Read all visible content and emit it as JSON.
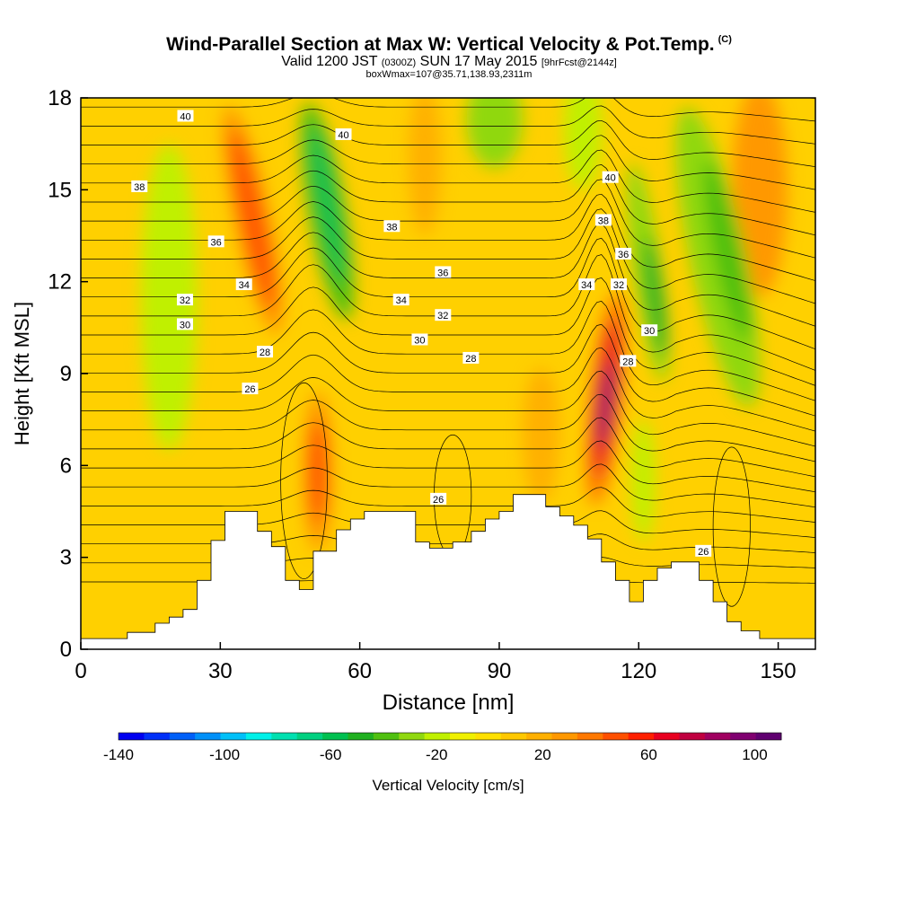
{
  "title": {
    "main": "Wind-Parallel Section at Max W: Vertical Velocity & Pot.Temp.",
    "copyright": "(C)",
    "valid_prefix": "Valid 1200 JST",
    "valid_utc": "(0300Z)",
    "valid_date": "SUN 17 May 2015",
    "forecast": "[9hrFcst@2144z]",
    "boxwmax": "boxWmax=107@35.71,138.93,2311m"
  },
  "chart_data": {
    "type": "contour-section",
    "xlabel": "Distance [nm]",
    "ylabel": "Height [Kft MSL]",
    "xlim": [
      0,
      158
    ],
    "ylim": [
      0,
      18
    ],
    "xticks": [
      0,
      30,
      60,
      90,
      120,
      150
    ],
    "yticks": [
      0,
      3,
      6,
      9,
      12,
      15,
      18
    ],
    "colorbar": {
      "label": "Vertical Velocity [cm/s]",
      "tick_labels": [
        "-140",
        "-100",
        "-60",
        "-20",
        "20",
        "60",
        "100"
      ],
      "tick_values": [
        -140,
        -100,
        -60,
        -20,
        20,
        60,
        100
      ],
      "range": [
        -140,
        110
      ],
      "colors": [
        "#0000f0",
        "#0030f8",
        "#0060f8",
        "#0090f8",
        "#00c0f8",
        "#00f0e8",
        "#00e0b0",
        "#00d080",
        "#00c050",
        "#20b020",
        "#50c010",
        "#90d810",
        "#c0f000",
        "#f0f000",
        "#ffe000",
        "#ffc800",
        "#ffb000",
        "#ff9800",
        "#ff7800",
        "#ff5000",
        "#ff2000",
        "#e80020",
        "#c00040",
        "#a00060",
        "#800070",
        "#600070"
      ]
    },
    "terrain": [
      [
        0,
        0.35
      ],
      [
        10,
        0.35
      ],
      [
        10,
        0.55
      ],
      [
        16,
        0.55
      ],
      [
        16,
        0.85
      ],
      [
        19,
        0.85
      ],
      [
        19,
        1.05
      ],
      [
        22,
        1.05
      ],
      [
        22,
        1.3
      ],
      [
        25,
        1.3
      ],
      [
        25,
        2.25
      ],
      [
        28,
        2.25
      ],
      [
        28,
        3.55
      ],
      [
        31,
        3.55
      ],
      [
        31,
        4.5
      ],
      [
        38,
        4.5
      ],
      [
        38,
        3.85
      ],
      [
        41,
        3.85
      ],
      [
        41,
        3.35
      ],
      [
        44,
        3.35
      ],
      [
        44,
        2.25
      ],
      [
        47,
        2.25
      ],
      [
        47,
        1.95
      ],
      [
        50,
        1.95
      ],
      [
        50,
        3.2
      ],
      [
        55,
        3.2
      ],
      [
        55,
        3.9
      ],
      [
        58,
        3.9
      ],
      [
        58,
        4.25
      ],
      [
        61,
        4.25
      ],
      [
        61,
        4.5
      ],
      [
        72,
        4.5
      ],
      [
        72,
        3.5
      ],
      [
        75,
        3.5
      ],
      [
        75,
        3.3
      ],
      [
        80,
        3.3
      ],
      [
        80,
        3.5
      ],
      [
        84,
        3.5
      ],
      [
        84,
        3.85
      ],
      [
        87,
        3.85
      ],
      [
        87,
        4.25
      ],
      [
        90,
        4.25
      ],
      [
        90,
        4.5
      ],
      [
        93,
        4.5
      ],
      [
        93,
        5.05
      ],
      [
        100,
        5.05
      ],
      [
        100,
        4.65
      ],
      [
        103,
        4.65
      ],
      [
        103,
        4.35
      ],
      [
        106,
        4.35
      ],
      [
        106,
        4.05
      ],
      [
        109,
        4.05
      ],
      [
        109,
        3.6
      ],
      [
        112,
        3.6
      ],
      [
        112,
        2.85
      ],
      [
        115,
        2.85
      ],
      [
        115,
        2.25
      ],
      [
        118,
        2.25
      ],
      [
        118,
        1.55
      ],
      [
        121,
        1.55
      ],
      [
        121,
        2.25
      ],
      [
        124,
        2.25
      ],
      [
        124,
        2.65
      ],
      [
        127,
        2.65
      ],
      [
        127,
        2.85
      ],
      [
        133,
        2.85
      ],
      [
        133,
        2.25
      ],
      [
        136,
        2.25
      ],
      [
        136,
        1.55
      ],
      [
        139,
        1.55
      ],
      [
        139,
        0.9
      ],
      [
        142,
        0.9
      ],
      [
        142,
        0.6
      ],
      [
        146,
        0.6
      ],
      [
        146,
        0.35
      ],
      [
        158,
        0.35
      ]
    ],
    "wfield_peaks": [
      {
        "x": 37,
        "y": 14.0,
        "value": 60
      },
      {
        "x": 51,
        "y": 5.8,
        "value": 50
      },
      {
        "x": 113,
        "y": 8.2,
        "value": 107
      },
      {
        "x": 52,
        "y": 15.0,
        "value": -55
      },
      {
        "x": 55,
        "y": 12.0,
        "value": -45
      },
      {
        "x": 88,
        "y": 17.5,
        "value": -30
      },
      {
        "x": 123,
        "y": 12.0,
        "value": -40
      },
      {
        "x": 138,
        "y": 12.5,
        "value": -35
      }
    ],
    "isentrope_labels": [
      {
        "text": "40",
        "x": 22.5,
        "y": 17.4
      },
      {
        "text": "40",
        "x": 56.5,
        "y": 16.8
      },
      {
        "text": "38",
        "x": 12.6,
        "y": 15.1
      },
      {
        "text": "38",
        "x": 66.9,
        "y": 13.8
      },
      {
        "text": "40",
        "x": 113.9,
        "y": 15.4
      },
      {
        "text": "36",
        "x": 29.1,
        "y": 13.3
      },
      {
        "text": "38",
        "x": 112.4,
        "y": 14.0
      },
      {
        "text": "36",
        "x": 77.9,
        "y": 12.3
      },
      {
        "text": "36",
        "x": 116.7,
        "y": 12.9
      },
      {
        "text": "34",
        "x": 35.1,
        "y": 11.9
      },
      {
        "text": "34",
        "x": 108.8,
        "y": 11.9
      },
      {
        "text": "32",
        "x": 115.7,
        "y": 11.9
      },
      {
        "text": "34",
        "x": 68.9,
        "y": 11.4
      },
      {
        "text": "32",
        "x": 22.4,
        "y": 11.4
      },
      {
        "text": "32",
        "x": 77.9,
        "y": 10.9
      },
      {
        "text": "30",
        "x": 22.4,
        "y": 10.6
      },
      {
        "text": "30",
        "x": 72.9,
        "y": 10.1
      },
      {
        "text": "30",
        "x": 122.3,
        "y": 10.4
      },
      {
        "text": "28",
        "x": 39.6,
        "y": 9.7
      },
      {
        "text": "28",
        "x": 83.9,
        "y": 9.5
      },
      {
        "text": "28",
        "x": 117.7,
        "y": 9.4
      },
      {
        "text": "26",
        "x": 36.4,
        "y": 8.5
      },
      {
        "text": "26",
        "x": 76.9,
        "y": 4.9
      },
      {
        "text": "26",
        "x": 133.9,
        "y": 3.2
      }
    ]
  }
}
